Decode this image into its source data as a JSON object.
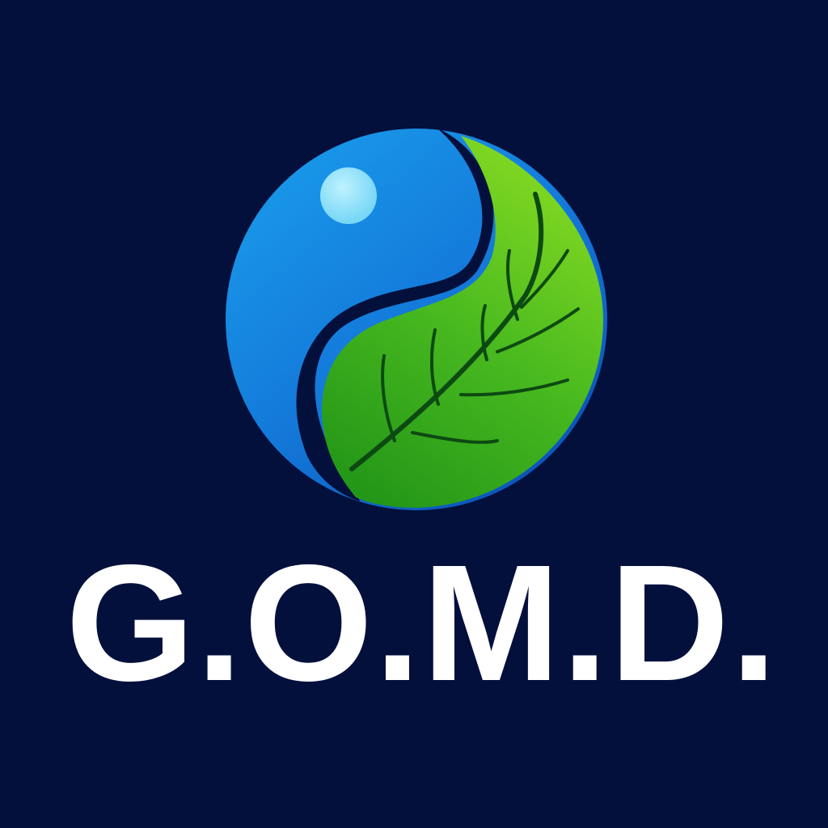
{
  "logo": {
    "wordmark": "G.O.M.D.",
    "colors": {
      "background": "#03103c",
      "water_light": "#1a9bea",
      "water_dark": "#0a52b8",
      "leaf_light": "#7fd61e",
      "leaf_dark": "#249a1c",
      "leaf_vein": "#0d4a12",
      "highlight": "#a6efff",
      "text": "#ffffff"
    },
    "emblem_icon": "water-drop-leaf-yin-yang-icon"
  }
}
